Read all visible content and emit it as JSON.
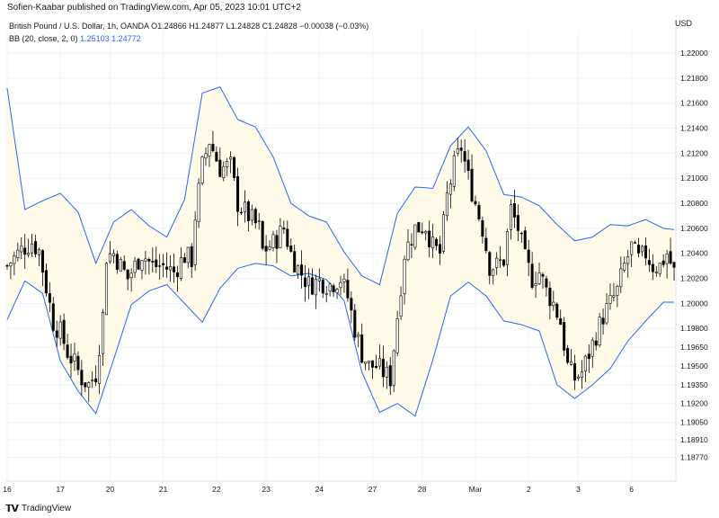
{
  "header": {
    "publisher": "Sofien-Kaabar published on TradingView.com, Apr 05, 2023 10:01 UTC+2",
    "currency": "USD"
  },
  "legend": {
    "symbol_line": "British Pound / U.S. Dollar, 1h, OANDA  O1.24866  H1.24877  L1.24828  C1.24828  −0.00038 (−0.03%)",
    "bb_label": "BB (20, close, 2, 0)",
    "bb_upper": "1.25103",
    "bb_lower": "1.24772"
  },
  "footer": {
    "brand": "TradingView"
  },
  "colors": {
    "band_line": "#2962ff",
    "band_fill": "#fffbe8",
    "candle": "#000000",
    "grid": "#f0f3fa"
  },
  "chart_data": {
    "type": "candlestick",
    "title": "",
    "xlabel": "",
    "ylabel": "",
    "ylim": [
      1.1858,
      1.2218
    ],
    "y_ticks": [
      "1.22000",
      "1.21800",
      "1.21600",
      "1.21400",
      "1.21200",
      "1.21000",
      "1.20800",
      "1.20600",
      "1.20400",
      "1.20200",
      "1.20000",
      "1.19800",
      "1.19650",
      "1.19500",
      "1.19350",
      "1.19200",
      "1.19050",
      "1.18910",
      "1.18770"
    ],
    "x_ticks": [
      {
        "label": "16",
        "index": 0
      },
      {
        "label": "17",
        "index": 15
      },
      {
        "label": "20",
        "index": 29
      },
      {
        "label": "21",
        "index": 44
      },
      {
        "label": "22",
        "index": 59
      },
      {
        "label": "23",
        "index": 73
      },
      {
        "label": "24",
        "index": 88
      },
      {
        "label": "27",
        "index": 103
      },
      {
        "label": "28",
        "index": 117
      },
      {
        "label": "Mar",
        "index": 132
      },
      {
        "label": "2",
        "index": 147
      },
      {
        "label": "3",
        "index": 161
      },
      {
        "label": "6",
        "index": 176
      }
    ],
    "bands": {
      "upper_points": [
        [
          0,
          1.2172
        ],
        [
          5,
          1.2075
        ],
        [
          10,
          1.2082
        ],
        [
          15,
          1.2088
        ],
        [
          20,
          1.2073
        ],
        [
          25,
          1.2032
        ],
        [
          30,
          1.2065
        ],
        [
          35,
          1.2075
        ],
        [
          40,
          1.2062
        ],
        [
          45,
          1.2053
        ],
        [
          50,
          1.2083
        ],
        [
          55,
          1.2168
        ],
        [
          60,
          1.2173
        ],
        [
          65,
          1.2147
        ],
        [
          70,
          1.2141
        ],
        [
          75,
          1.2117
        ],
        [
          80,
          1.208
        ],
        [
          85,
          1.207
        ],
        [
          90,
          1.2065
        ],
        [
          95,
          1.2041
        ],
        [
          100,
          1.2022
        ],
        [
          105,
          1.2015
        ],
        [
          110,
          1.2072
        ],
        [
          115,
          1.2093
        ],
        [
          120,
          1.2092
        ],
        [
          125,
          1.2126
        ],
        [
          130,
          1.2141
        ],
        [
          135,
          1.2122
        ],
        [
          140,
          1.2087
        ],
        [
          145,
          1.2085
        ],
        [
          150,
          1.2078
        ],
        [
          155,
          1.2063
        ],
        [
          160,
          1.205
        ],
        [
          165,
          1.2053
        ],
        [
          170,
          1.2063
        ],
        [
          175,
          1.2062
        ],
        [
          180,
          1.2067
        ],
        [
          185,
          1.206
        ],
        [
          188,
          1.2059
        ]
      ],
      "lower_points": [
        [
          0,
          1.1987
        ],
        [
          5,
          1.2018
        ],
        [
          10,
          1.2008
        ],
        [
          15,
          1.1954
        ],
        [
          20,
          1.193
        ],
        [
          25,
          1.1912
        ],
        [
          30,
          1.1955
        ],
        [
          35,
          1.1999
        ],
        [
          40,
          1.201
        ],
        [
          45,
          1.2015
        ],
        [
          50,
          1.2
        ],
        [
          55,
          1.1985
        ],
        [
          60,
          1.2012
        ],
        [
          65,
          1.2028
        ],
        [
          70,
          1.2032
        ],
        [
          75,
          1.203
        ],
        [
          80,
          1.2022
        ],
        [
          85,
          1.2024
        ],
        [
          90,
          1.2019
        ],
        [
          95,
          1.2002
        ],
        [
          100,
          1.1945
        ],
        [
          105,
          1.1913
        ],
        [
          110,
          1.192
        ],
        [
          115,
          1.191
        ],
        [
          120,
          1.1955
        ],
        [
          125,
          1.2006
        ],
        [
          130,
          1.2017
        ],
        [
          135,
          1.2006
        ],
        [
          140,
          1.1986
        ],
        [
          145,
          1.1983
        ],
        [
          150,
          1.1978
        ],
        [
          155,
          1.1935
        ],
        [
          160,
          1.1924
        ],
        [
          165,
          1.1935
        ],
        [
          170,
          1.1948
        ],
        [
          175,
          1.197
        ],
        [
          180,
          1.1986
        ],
        [
          185,
          1.2001
        ],
        [
          188,
          1.2001
        ]
      ]
    },
    "close_path": [
      [
        0,
        1.203
      ],
      [
        4,
        1.2043
      ],
      [
        7,
        1.2049
      ],
      [
        9,
        1.2042
      ],
      [
        11,
        1.2013
      ],
      [
        13,
        1.1985
      ],
      [
        15,
        1.1977
      ],
      [
        17,
        1.1961
      ],
      [
        19,
        1.1952
      ],
      [
        21,
        1.194
      ],
      [
        23,
        1.1935
      ],
      [
        25,
        1.1944
      ],
      [
        27,
        1.199
      ],
      [
        28,
        1.2038
      ],
      [
        30,
        1.204
      ],
      [
        32,
        1.203
      ],
      [
        34,
        1.202
      ],
      [
        36,
        1.203
      ],
      [
        38,
        1.204
      ],
      [
        41,
        1.203
      ],
      [
        44,
        1.203
      ],
      [
        47,
        1.2025
      ],
      [
        50,
        1.2038
      ],
      [
        52,
        1.2035
      ],
      [
        53,
        1.207
      ],
      [
        55,
        1.211
      ],
      [
        57,
        1.213
      ],
      [
        60,
        1.2108
      ],
      [
        63,
        1.211
      ],
      [
        65,
        1.208
      ],
      [
        68,
        1.207
      ],
      [
        71,
        1.206
      ],
      [
        72,
        1.2042
      ],
      [
        75,
        1.2048
      ],
      [
        78,
        1.206
      ],
      [
        80,
        1.204
      ],
      [
        82,
        1.2028
      ],
      [
        85,
        1.2015
      ],
      [
        88,
        1.2018
      ],
      [
        91,
        1.2015
      ],
      [
        94,
        1.202
      ],
      [
        96,
        1.2005
      ],
      [
        98,
        1.198
      ],
      [
        100,
        1.196
      ],
      [
        102,
        1.195
      ],
      [
        104,
        1.195
      ],
      [
        106,
        1.1945
      ],
      [
        108,
        1.194
      ],
      [
        110,
        1.199
      ],
      [
        112,
        1.204
      ],
      [
        115,
        1.206
      ],
      [
        118,
        1.2062
      ],
      [
        120,
        1.2045
      ],
      [
        122,
        1.204
      ],
      [
        124,
        1.2085
      ],
      [
        126,
        1.211
      ],
      [
        128,
        1.2125
      ],
      [
        130,
        1.21
      ],
      [
        132,
        1.208
      ],
      [
        134,
        1.206
      ],
      [
        136,
        1.203
      ],
      [
        138,
        1.203
      ],
      [
        140,
        1.2035
      ],
      [
        142,
        1.2075
      ],
      [
        144,
        1.206
      ],
      [
        146,
        1.2035
      ],
      [
        148,
        1.202
      ],
      [
        150,
        1.2025
      ],
      [
        152,
        1.201
      ],
      [
        154,
        1.2
      ],
      [
        156,
        1.1985
      ],
      [
        158,
        1.195
      ],
      [
        160,
        1.194
      ],
      [
        162,
        1.1945
      ],
      [
        164,
        1.196
      ],
      [
        166,
        1.1975
      ],
      [
        168,
        1.199
      ],
      [
        170,
        1.2
      ],
      [
        172,
        1.201
      ],
      [
        174,
        1.203
      ],
      [
        176,
        1.2045
      ],
      [
        178,
        1.2035
      ],
      [
        180,
        1.204
      ],
      [
        182,
        1.203
      ],
      [
        184,
        1.203
      ],
      [
        186,
        1.204
      ],
      [
        188,
        1.2025
      ]
    ]
  }
}
